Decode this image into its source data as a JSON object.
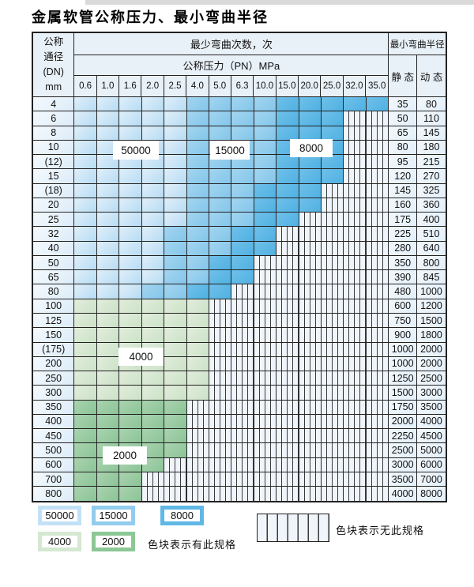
{
  "title": "金属软管公称压力、最小弯曲半径",
  "table": {
    "header": {
      "dn_lines": [
        "公称",
        "通径",
        "(DN)",
        "mm"
      ],
      "cycles_label": "最少弯曲次数，次",
      "pressure_label": "公称压力（PN）MPa",
      "radius_label": "最小弯曲半径",
      "static_label": "静 态",
      "dynamic_label": "动 态",
      "pressures": [
        "0.6",
        "1.0",
        "1.6",
        "2.0",
        "2.5",
        "4.0",
        "5.0",
        "6.3",
        "10.0",
        "15.0",
        "20.0",
        "25.0",
        "32.0",
        "35.0"
      ]
    },
    "rows": [
      {
        "dn": "4",
        "cells": [
          [
            "z50",
            5
          ],
          [
            "z15",
            4
          ],
          [
            "z8",
            5
          ]
        ],
        "static": "35",
        "dynamic": "80"
      },
      {
        "dn": "6",
        "cells": [
          [
            "z50",
            5
          ],
          [
            "z15",
            4
          ],
          [
            "z8",
            3
          ]
        ],
        "static": "50",
        "dynamic": "110"
      },
      {
        "dn": "8",
        "cells": [
          [
            "z50",
            5
          ],
          [
            "z15",
            4
          ],
          [
            "z8",
            3
          ]
        ],
        "static": "65",
        "dynamic": "145"
      },
      {
        "dn": "10",
        "cells": [
          [
            "z50",
            5
          ],
          [
            "z15",
            4
          ],
          [
            "z8",
            3
          ]
        ],
        "static": "80",
        "dynamic": "180"
      },
      {
        "dn": "(12)",
        "cells": [
          [
            "z50",
            5
          ],
          [
            "z15",
            4
          ],
          [
            "z8",
            3
          ]
        ],
        "static": "95",
        "dynamic": "215"
      },
      {
        "dn": "15",
        "cells": [
          [
            "z50",
            5
          ],
          [
            "z15",
            4
          ],
          [
            "z8",
            3
          ]
        ],
        "static": "120",
        "dynamic": "270"
      },
      {
        "dn": "(18)",
        "cells": [
          [
            "z50",
            5
          ],
          [
            "z15",
            3
          ],
          [
            "z8",
            3
          ]
        ],
        "static": "145",
        "dynamic": "325"
      },
      {
        "dn": "20",
        "cells": [
          [
            "z50",
            5
          ],
          [
            "z15",
            3
          ],
          [
            "z8",
            3
          ]
        ],
        "static": "160",
        "dynamic": "360"
      },
      {
        "dn": "25",
        "cells": [
          [
            "z50",
            5
          ],
          [
            "z15",
            3
          ],
          [
            "z8",
            2
          ]
        ],
        "static": "175",
        "dynamic": "400"
      },
      {
        "dn": "32",
        "cells": [
          [
            "z50",
            4
          ],
          [
            "z15",
            3
          ],
          [
            "z8",
            2
          ]
        ],
        "static": "225",
        "dynamic": "510"
      },
      {
        "dn": "40",
        "cells": [
          [
            "z50",
            4
          ],
          [
            "z15",
            3
          ],
          [
            "z8",
            2
          ]
        ],
        "static": "280",
        "dynamic": "640"
      },
      {
        "dn": "50",
        "cells": [
          [
            "z50",
            4
          ],
          [
            "z15",
            2
          ],
          [
            "z8",
            2
          ]
        ],
        "static": "350",
        "dynamic": "800"
      },
      {
        "dn": "65",
        "cells": [
          [
            "z50",
            4
          ],
          [
            "z15",
            2
          ],
          [
            "z8",
            2
          ]
        ],
        "static": "390",
        "dynamic": "845"
      },
      {
        "dn": "80",
        "cells": [
          [
            "z50",
            3
          ],
          [
            "z15",
            2
          ],
          [
            "z8",
            2
          ]
        ],
        "static": "480",
        "dynamic": "1000"
      },
      {
        "dn": "100",
        "cells": [
          [
            "z4",
            6
          ]
        ],
        "static": "600",
        "dynamic": "1200"
      },
      {
        "dn": "125",
        "cells": [
          [
            "z4",
            6
          ]
        ],
        "static": "750",
        "dynamic": "1500"
      },
      {
        "dn": "150",
        "cells": [
          [
            "z4",
            6
          ]
        ],
        "static": "900",
        "dynamic": "1800"
      },
      {
        "dn": "(175)",
        "cells": [
          [
            "z4",
            6
          ]
        ],
        "static": "1000",
        "dynamic": "2000"
      },
      {
        "dn": "200",
        "cells": [
          [
            "z4",
            6
          ]
        ],
        "static": "1000",
        "dynamic": "2000"
      },
      {
        "dn": "250",
        "cells": [
          [
            "z4",
            6
          ]
        ],
        "static": "1250",
        "dynamic": "2500"
      },
      {
        "dn": "300",
        "cells": [
          [
            "z4",
            6
          ]
        ],
        "static": "1500",
        "dynamic": "3000"
      },
      {
        "dn": "350",
        "cells": [
          [
            "z2",
            5
          ]
        ],
        "static": "1750",
        "dynamic": "3500"
      },
      {
        "dn": "400",
        "cells": [
          [
            "z2",
            5
          ]
        ],
        "static": "2000",
        "dynamic": "4000"
      },
      {
        "dn": "450",
        "cells": [
          [
            "z2",
            5
          ]
        ],
        "static": "2250",
        "dynamic": "4500"
      },
      {
        "dn": "500",
        "cells": [
          [
            "z2",
            5
          ]
        ],
        "static": "2500",
        "dynamic": "5000"
      },
      {
        "dn": "600",
        "cells": [
          [
            "z2",
            4
          ]
        ],
        "static": "3000",
        "dynamic": "6000"
      },
      {
        "dn": "700",
        "cells": [
          [
            "z2",
            3
          ]
        ],
        "static": "3500",
        "dynamic": "7000"
      },
      {
        "dn": "800",
        "cells": [
          [
            "z2",
            3
          ]
        ],
        "static": "4000",
        "dynamic": "8000"
      }
    ],
    "num_pressure_columns": 14
  },
  "zone_labels": {
    "z50000": "50000",
    "z15000": "15000",
    "z8000": "8000",
    "z4000": "4000",
    "z2000": "2000"
  },
  "legend": {
    "items": [
      {
        "label": "50000",
        "color": "#c3e1f6"
      },
      {
        "label": "15000",
        "color": "#92ccee"
      },
      {
        "label": "8000",
        "color": "#60b8e5"
      },
      {
        "label": "4000",
        "color": "#d5e8d1"
      },
      {
        "label": "2000",
        "color": "#8dc795"
      }
    ],
    "has_spec_note": "色块表示有此规格",
    "no_spec_note": "色块表示无此规格"
  },
  "colors": {
    "zone_50000": "#b7dcf3",
    "zone_15000": "#84c6ea",
    "zone_8000": "#50b1e2",
    "zone_4000": "#cce2c7",
    "zone_2000": "#8cc497",
    "hatch_background": "#f0f5fb",
    "header_background": "#e9f1f8",
    "grid_line": "#222222"
  }
}
